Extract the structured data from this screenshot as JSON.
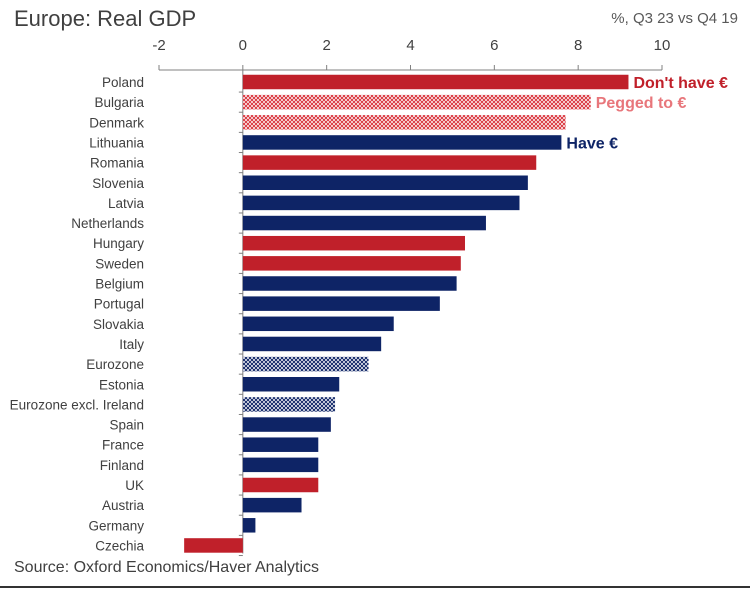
{
  "title": "Europe: Real GDP",
  "units_note": "%, Q3 23 vs Q4 19",
  "source": "Source: Oxford Economics/Haver Analytics",
  "colors": {
    "dont_have_euro": "#C0202A",
    "pegged_to_euro": "#E8767B",
    "have_euro": "#0E2466",
    "aggregate_hatch": "#5565A0",
    "axis": "#808080",
    "text": "#404040"
  },
  "chart_data": {
    "type": "bar",
    "orientation": "horizontal",
    "title": "Europe: Real GDP",
    "units": "%, Q3 23 vs Q4 19",
    "xlim": [
      -2,
      10
    ],
    "x_ticks": [
      -2,
      0,
      2,
      4,
      6,
      8,
      10
    ],
    "x_axis_position": "top",
    "grid": false,
    "categories": [
      "Poland",
      "Bulgaria",
      "Denmark",
      "Lithuania",
      "Romania",
      "Slovenia",
      "Latvia",
      "Netherlands",
      "Hungary",
      "Sweden",
      "Belgium",
      "Portugal",
      "Slovakia",
      "Italy",
      "Eurozone",
      "Estonia",
      "Eurozone excl. Ireland",
      "Spain",
      "France",
      "Finland",
      "UK",
      "Austria",
      "Germany",
      "Czechia"
    ],
    "values": [
      9.2,
      8.3,
      7.7,
      7.6,
      7.0,
      6.8,
      6.6,
      5.8,
      5.3,
      5.2,
      5.1,
      4.7,
      3.6,
      3.3,
      3.0,
      2.3,
      2.2,
      2.1,
      1.8,
      1.8,
      1.8,
      1.4,
      0.3,
      -1.4
    ],
    "groups": [
      "dont_have",
      "pegged",
      "pegged",
      "have",
      "dont_have",
      "have",
      "have",
      "have",
      "dont_have",
      "dont_have",
      "have",
      "have",
      "have",
      "have",
      "aggregate",
      "have",
      "aggregate",
      "have",
      "have",
      "have",
      "dont_have",
      "have",
      "have",
      "dont_have"
    ],
    "annotations": [
      {
        "category": "Poland",
        "text": "Don't have €",
        "group": "dont_have"
      },
      {
        "category": "Bulgaria",
        "text": "Pegged to €",
        "group": "pegged"
      },
      {
        "category": "Lithuania",
        "text": "Have €",
        "group": "have"
      }
    ]
  }
}
